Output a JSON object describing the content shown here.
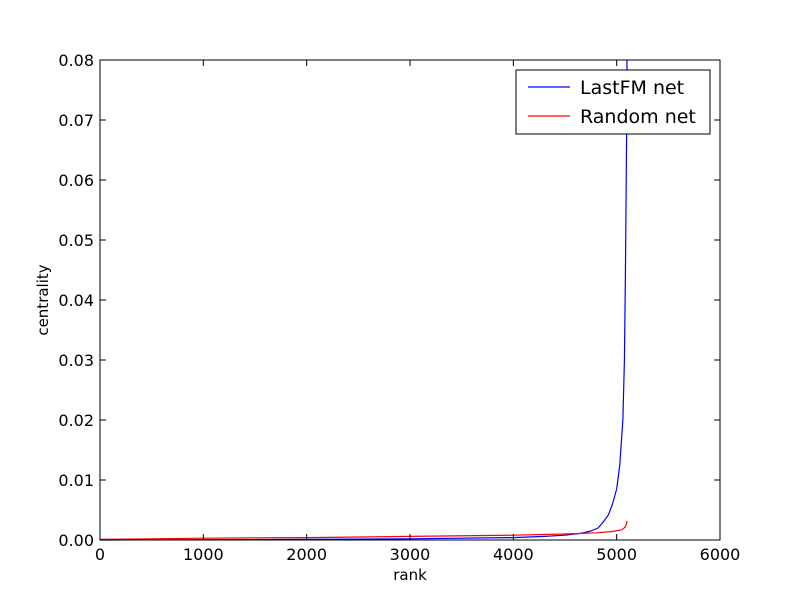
{
  "chart_data": {
    "type": "line",
    "title": "",
    "xlabel": "rank",
    "ylabel": "centrality",
    "xlim": [
      0,
      6000
    ],
    "ylim": [
      0,
      0.08
    ],
    "xticks": [
      0,
      1000,
      2000,
      3000,
      4000,
      5000,
      6000
    ],
    "xtick_labels": [
      "0",
      "1000",
      "2000",
      "3000",
      "4000",
      "5000",
      "6000"
    ],
    "yticks": [
      0,
      0.01,
      0.02,
      0.03,
      0.04,
      0.05,
      0.06,
      0.07,
      0.08
    ],
    "ytick_labels": [
      "0.00",
      "0.01",
      "0.02",
      "0.03",
      "0.04",
      "0.05",
      "0.06",
      "0.07",
      "0.08"
    ],
    "grid": false,
    "legend_position": "top-right",
    "series": [
      {
        "name": "LastFM net",
        "color": "#0000ff",
        "x": [
          0,
          1000,
          2000,
          3000,
          4000,
          4300,
          4500,
          4650,
          4750,
          4820,
          4870,
          4920,
          4960,
          5000,
          5030,
          5060,
          5075,
          5085,
          5090,
          5095,
          5098,
          5100
        ],
        "y": [
          0,
          5e-05,
          0.0001,
          0.0002,
          0.0004,
          0.0006,
          0.0008,
          0.0011,
          0.0015,
          0.002,
          0.003,
          0.0042,
          0.006,
          0.0085,
          0.0125,
          0.02,
          0.03,
          0.045,
          0.055,
          0.065,
          0.07,
          0.08
        ]
      },
      {
        "name": "Random net",
        "color": "#ff0000",
        "x": [
          0,
          500,
          1000,
          2000,
          3000,
          4000,
          4500,
          4800,
          4950,
          5050,
          5080,
          5095,
          5100
        ],
        "y": [
          0.0001,
          0.0002,
          0.0003,
          0.0004,
          0.0006,
          0.0008,
          0.001,
          0.0012,
          0.0014,
          0.0017,
          0.0021,
          0.0027,
          0.0032
        ]
      }
    ]
  }
}
